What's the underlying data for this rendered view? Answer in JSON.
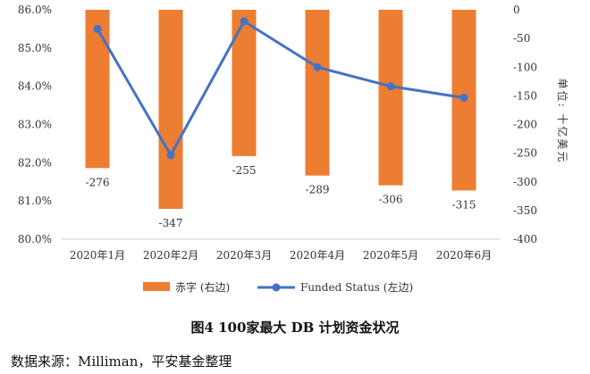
{
  "chart_data": {
    "type": "bar+line",
    "categories": [
      "2020年1月",
      "2020年2月",
      "2020年3月",
      "2020年4月",
      "2020年5月",
      "2020年6月"
    ],
    "series": [
      {
        "name": "赤字 (右边)",
        "kind": "bar",
        "axis": "right",
        "color": "#ED7D31",
        "values": [
          -276,
          -347,
          -255,
          -289,
          -306,
          -315
        ]
      },
      {
        "name": "Funded Status (左边)",
        "kind": "line",
        "axis": "left",
        "color": "#4472C4",
        "values": [
          85.5,
          82.2,
          85.7,
          84.5,
          84.0,
          83.7
        ]
      }
    ],
    "left_axis": {
      "ylim": [
        80.0,
        86.0
      ],
      "ticks": [
        "80.0%",
        "81.0%",
        "82.0%",
        "83.0%",
        "84.0%",
        "85.0%",
        "86.0%"
      ]
    },
    "right_axis": {
      "ylim": [
        -400,
        0
      ],
      "ticks": [
        "0",
        "-50",
        "-100",
        "-150",
        "-200",
        "-250",
        "-300",
        "-350",
        "-400"
      ],
      "ylabel": "单位: 十亿美元"
    },
    "data_labels": [
      "-276",
      "-347",
      "-255",
      "-289",
      "-306",
      "-315"
    ],
    "legend": {
      "placement": "bottom",
      "items": [
        "赤字 (右边)",
        "Funded Status (左边)"
      ]
    }
  },
  "caption": "图4  100家最大 DB 计划资金状况",
  "source": "数据来源：Milliman，平安基金整理"
}
